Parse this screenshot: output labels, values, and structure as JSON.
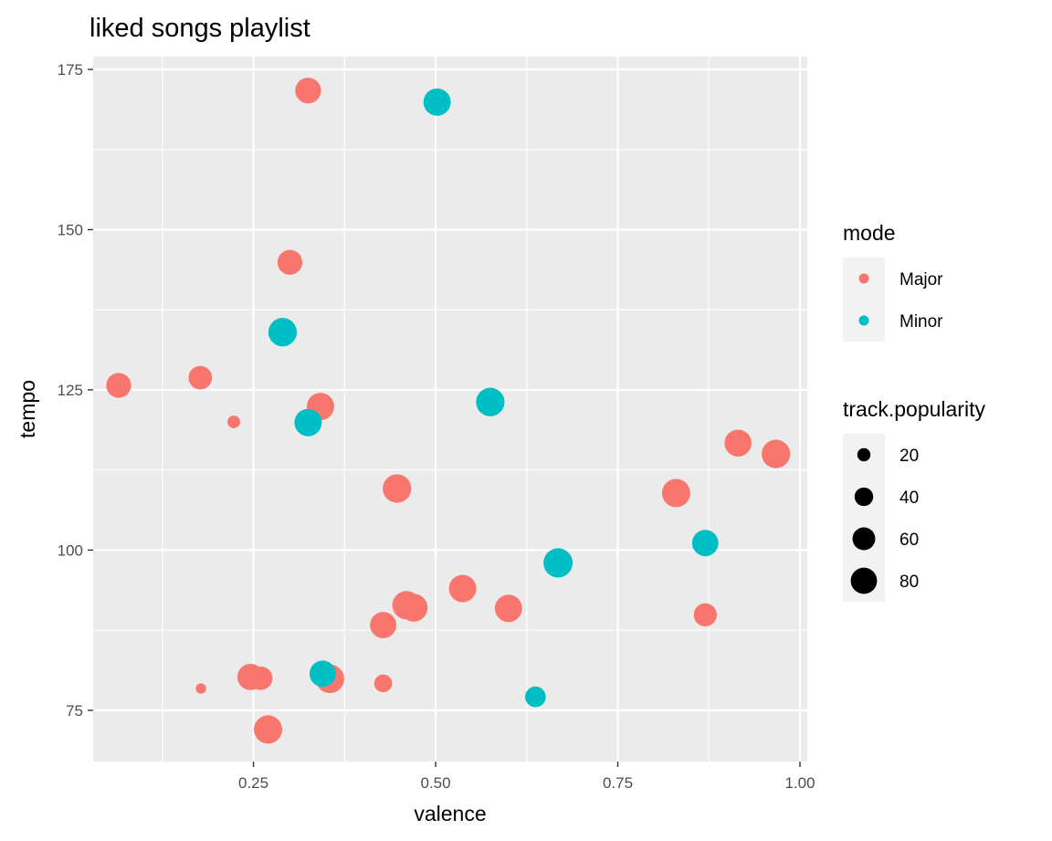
{
  "chart_data": {
    "type": "scatter",
    "title": "liked songs playlist",
    "xlabel": "valence",
    "ylabel": "tempo",
    "xlim": [
      0.03,
      1.01
    ],
    "ylim": [
      67,
      177
    ],
    "x_ticks": [
      0.25,
      0.5,
      0.75,
      1.0
    ],
    "x_tick_labels": [
      "0.25",
      "0.50",
      "0.75",
      "1.00"
    ],
    "y_ticks": [
      75,
      100,
      125,
      150,
      175
    ],
    "y_tick_labels": [
      "75",
      "100",
      "125",
      "150",
      "175"
    ],
    "grid": true,
    "legend_position": "right",
    "color_legend": {
      "title": "mode",
      "entries": [
        {
          "label": "Major",
          "color": "#F8766D"
        },
        {
          "label": "Minor",
          "color": "#00BFC4"
        }
      ]
    },
    "size_legend": {
      "title": "track.popularity",
      "values": [
        20,
        40,
        60,
        80
      ],
      "labels": [
        "20",
        "40",
        "60",
        "80"
      ]
    },
    "series": [
      {
        "name": "Major",
        "color": "#F8766D",
        "points": [
          {
            "x": 0.325,
            "y": 171.7,
            "size": 62
          },
          {
            "x": 0.3,
            "y": 144.9,
            "size": 58
          },
          {
            "x": 0.065,
            "y": 125.7,
            "size": 58
          },
          {
            "x": 0.177,
            "y": 126.9,
            "size": 52
          },
          {
            "x": 0.223,
            "y": 120.0,
            "size": 15
          },
          {
            "x": 0.342,
            "y": 122.4,
            "size": 70
          },
          {
            "x": 0.447,
            "y": 109.6,
            "size": 76
          },
          {
            "x": 0.83,
            "y": 108.9,
            "size": 75
          },
          {
            "x": 0.915,
            "y": 116.7,
            "size": 68
          },
          {
            "x": 0.967,
            "y": 115.0,
            "size": 76
          },
          {
            "x": 0.87,
            "y": 89.9,
            "size": 50
          },
          {
            "x": 0.537,
            "y": 94.0,
            "size": 70
          },
          {
            "x": 0.6,
            "y": 90.9,
            "size": 70
          },
          {
            "x": 0.46,
            "y": 91.4,
            "size": 75
          },
          {
            "x": 0.47,
            "y": 91.0,
            "size": 72
          },
          {
            "x": 0.428,
            "y": 88.3,
            "size": 65
          },
          {
            "x": 0.246,
            "y": 80.2,
            "size": 65
          },
          {
            "x": 0.26,
            "y": 80.0,
            "size": 52
          },
          {
            "x": 0.355,
            "y": 79.9,
            "size": 76
          },
          {
            "x": 0.27,
            "y": 72.0,
            "size": 75
          },
          {
            "x": 0.178,
            "y": 78.4,
            "size": 10
          },
          {
            "x": 0.428,
            "y": 79.2,
            "size": 30
          }
        ]
      },
      {
        "name": "Minor",
        "color": "#00BFC4",
        "points": [
          {
            "x": 0.502,
            "y": 169.9,
            "size": 70
          },
          {
            "x": 0.29,
            "y": 134.0,
            "size": 76
          },
          {
            "x": 0.325,
            "y": 119.9,
            "size": 70
          },
          {
            "x": 0.575,
            "y": 123.1,
            "size": 76
          },
          {
            "x": 0.87,
            "y": 101.1,
            "size": 65
          },
          {
            "x": 0.668,
            "y": 98.0,
            "size": 80
          },
          {
            "x": 0.345,
            "y": 80.7,
            "size": 65
          },
          {
            "x": 0.637,
            "y": 77.1,
            "size": 40
          }
        ]
      }
    ]
  }
}
